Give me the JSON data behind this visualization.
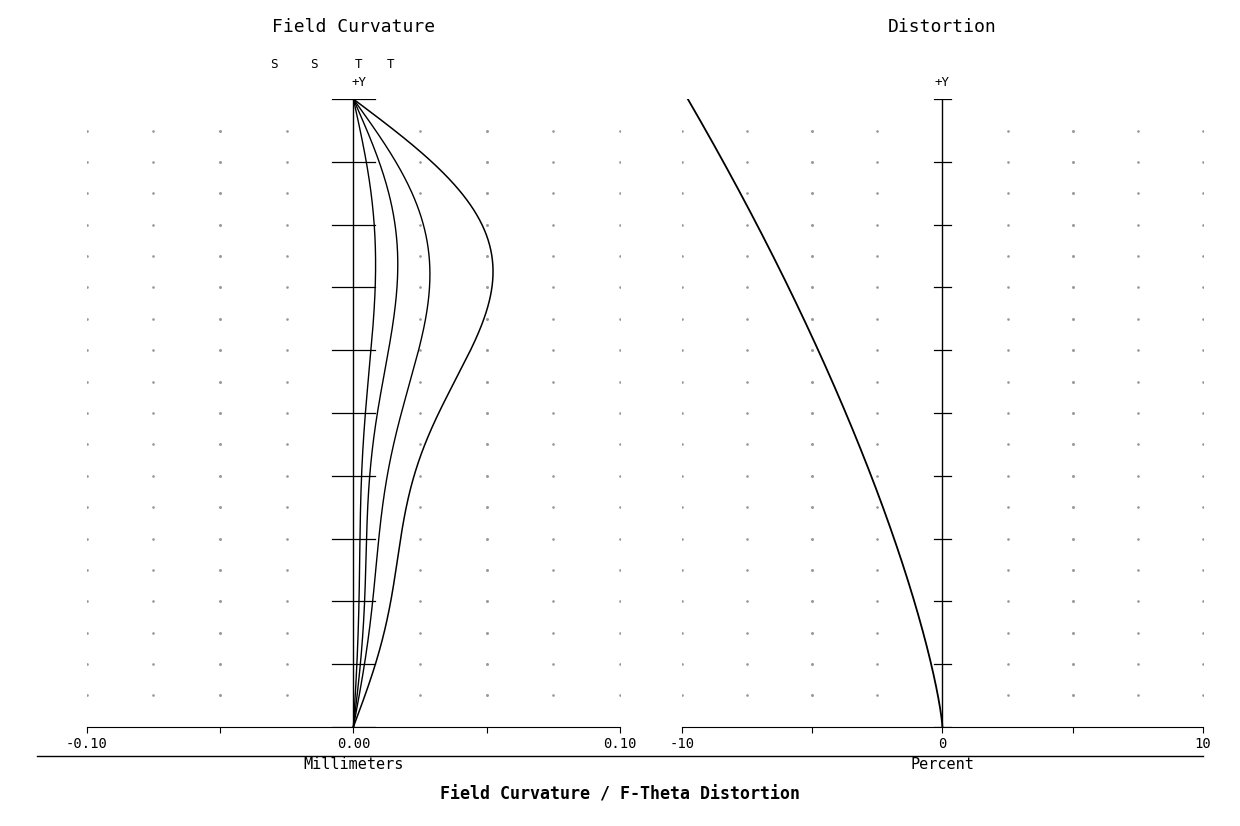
{
  "fc_title": "Field Curvature",
  "dist_title": "Distortion",
  "bottom_title": "Field Curvature / F-Theta Distortion",
  "fc_xlabel": "Millimeters",
  "dist_xlabel": "Percent",
  "fc_xlim": [
    -0.1,
    0.1
  ],
  "dist_xlim": [
    -10,
    10
  ],
  "ylim": [
    0,
    1
  ],
  "bg_color": "#ffffff",
  "line_color": "#000000",
  "font_family": "monospace",
  "n_yticks": 11,
  "dot_color": "#999999",
  "fc_xtick_labels": [
    "-0.10",
    "",
    "0.00",
    "",
    "0.10"
  ],
  "dist_xtick_labels": [
    "-10",
    "",
    "0",
    "",
    "10"
  ],
  "legend_labels": [
    "S",
    "S",
    "T",
    "T",
    "+Y"
  ]
}
